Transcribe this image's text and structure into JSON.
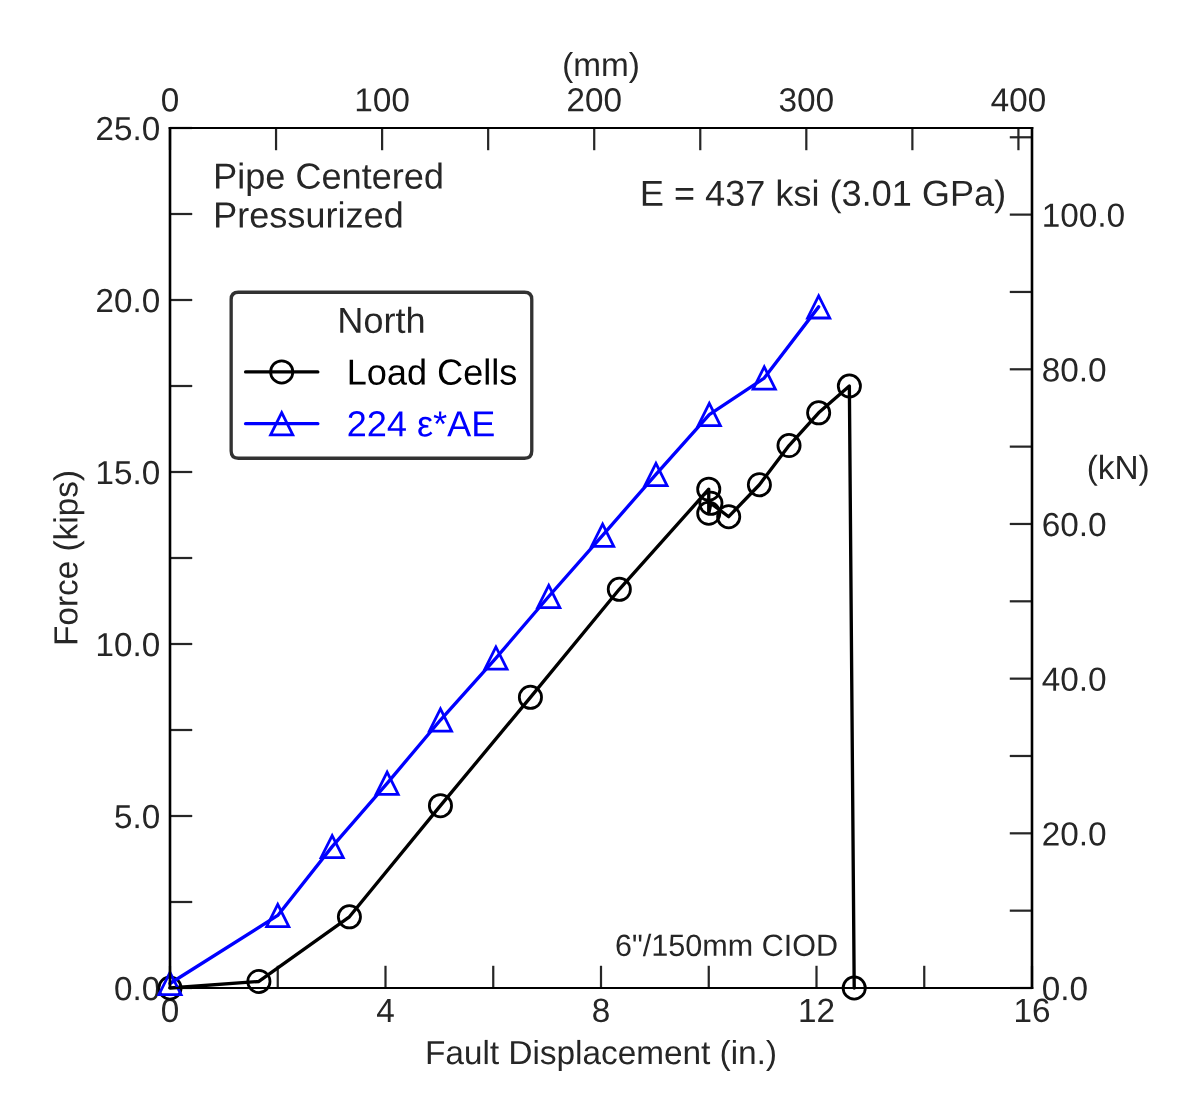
{
  "chart_data": {
    "type": "line",
    "xlabel": "Fault Displacement (in.)",
    "ylabel": "Force (kips)",
    "x2label": "(mm)",
    "y2label": "(kN)",
    "legend_title": "North",
    "legend": "top left",
    "grid": false,
    "line_style": "solid",
    "xlim": [
      0,
      16
    ],
    "xticks": [
      0,
      {
        "value": 2,
        "label": null
      },
      4,
      {
        "value": 6,
        "label": null
      },
      8,
      {
        "value": 10,
        "label": null
      },
      12,
      {
        "value": 14,
        "label": null
      },
      16
    ],
    "ylim": [
      0,
      25
    ],
    "yticks": [
      {
        "value": 0,
        "label": "0.0"
      },
      {
        "value": 2.5,
        "label": null
      },
      {
        "value": 5,
        "label": "5.0"
      },
      {
        "value": 7.5,
        "label": null
      },
      {
        "value": 10,
        "label": "10.0"
      },
      {
        "value": 12.5,
        "label": null
      },
      {
        "value": 15,
        "label": "15.0"
      },
      {
        "value": 17.5,
        "label": null
      },
      {
        "value": 20,
        "label": "20.0"
      },
      {
        "value": 22.5,
        "label": null
      },
      {
        "value": 25,
        "label": "25.0"
      }
    ],
    "x2lim": [
      0,
      406.4
    ],
    "x2ticks": [
      0,
      {
        "value": 50,
        "label": null
      },
      100,
      {
        "value": 150,
        "label": null
      },
      200,
      {
        "value": 250,
        "label": null
      },
      300,
      {
        "value": 350,
        "label": null
      },
      400
    ],
    "y2lim": [
      0,
      111.2
    ],
    "y2ticks": [
      {
        "value": 0,
        "label": "0.0"
      },
      {
        "value": 10,
        "label": null
      },
      {
        "value": 20,
        "label": "20.0"
      },
      {
        "value": 30,
        "label": null
      },
      {
        "value": 40,
        "label": "40.0"
      },
      {
        "value": 50,
        "label": null
      },
      {
        "value": 60,
        "label": "60.0"
      },
      {
        "value": 70,
        "label": null
      },
      {
        "value": 80,
        "label": "80.0"
      },
      {
        "value": 90,
        "label": null
      },
      {
        "value": 100,
        "label": "100.0"
      },
      {
        "value": 110,
        "label": null
      }
    ],
    "annotations": [
      "Pipe Centered\nPressurized",
      "E = 437 ksi (3.01 GPa)",
      "6\"/150mm CIOD"
    ],
    "series": [
      {
        "name": "Load Cells",
        "color": "#000000",
        "marker": "circle",
        "x": [
          0,
          1.65,
          3.33,
          5.02,
          6.69,
          8.34,
          10.0,
          10.0,
          10.04,
          10.37,
          10.94,
          11.49,
          12.04,
          12.61,
          12.7
        ],
        "values": [
          0,
          0.19,
          2.07,
          5.3,
          8.45,
          11.59,
          14.5,
          13.8,
          14.09,
          13.7,
          14.63,
          15.77,
          16.72,
          17.5,
          0
        ]
      },
      {
        "name": "224 ε*AE",
        "color": "#0000ff",
        "marker": "triangle",
        "x": [
          0,
          2.0,
          3.01,
          4.03,
          5.02,
          6.05,
          7.03,
          8.03,
          9.02,
          10.01,
          11.03,
          12.04
        ],
        "values": [
          0.13,
          2.11,
          4.11,
          5.95,
          7.79,
          9.59,
          11.38,
          13.16,
          14.93,
          16.67,
          17.73,
          19.8
        ]
      }
    ]
  }
}
